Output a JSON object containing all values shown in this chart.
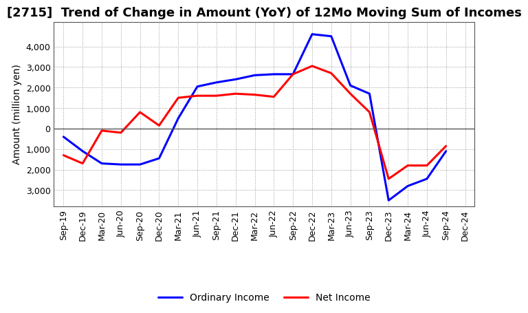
{
  "title": "[2715]  Trend of Change in Amount (YoY) of 12Mo Moving Sum of Incomes",
  "ylabel": "Amount (million yen)",
  "x_labels": [
    "Sep-19",
    "Dec-19",
    "Mar-20",
    "Jun-20",
    "Sep-20",
    "Dec-20",
    "Mar-21",
    "Jun-21",
    "Sep-21",
    "Dec-21",
    "Mar-22",
    "Jun-22",
    "Sep-22",
    "Dec-22",
    "Mar-23",
    "Jun-23",
    "Sep-23",
    "Dec-23",
    "Mar-24",
    "Jun-24",
    "Sep-24",
    "Dec-24"
  ],
  "ordinary_income": [
    -400,
    -1100,
    -1700,
    -1750,
    -1750,
    -1450,
    500,
    2050,
    2250,
    2400,
    2600,
    2650,
    2650,
    4600,
    4500,
    2100,
    1700,
    -3500,
    -2800,
    -2450,
    -1100,
    null
  ],
  "net_income": [
    -1300,
    -1700,
    -100,
    -200,
    800,
    150,
    1500,
    1600,
    1600,
    1700,
    1650,
    1550,
    2650,
    3050,
    2700,
    1700,
    800,
    -2450,
    -1800,
    -1800,
    -850,
    null
  ],
  "ordinary_income_color": "#0000ff",
  "net_income_color": "#ff0000",
  "ylim": [
    -3800,
    5200
  ],
  "yticks": [
    -3000,
    -2000,
    -1000,
    0,
    1000,
    2000,
    3000,
    4000
  ],
  "legend_ordinary": "Ordinary Income",
  "legend_net": "Net Income",
  "bg_color": "#ffffff",
  "grid_color": "#999999",
  "title_fontsize": 13,
  "label_fontsize": 10,
  "tick_fontsize": 9,
  "linewidth": 2.2
}
